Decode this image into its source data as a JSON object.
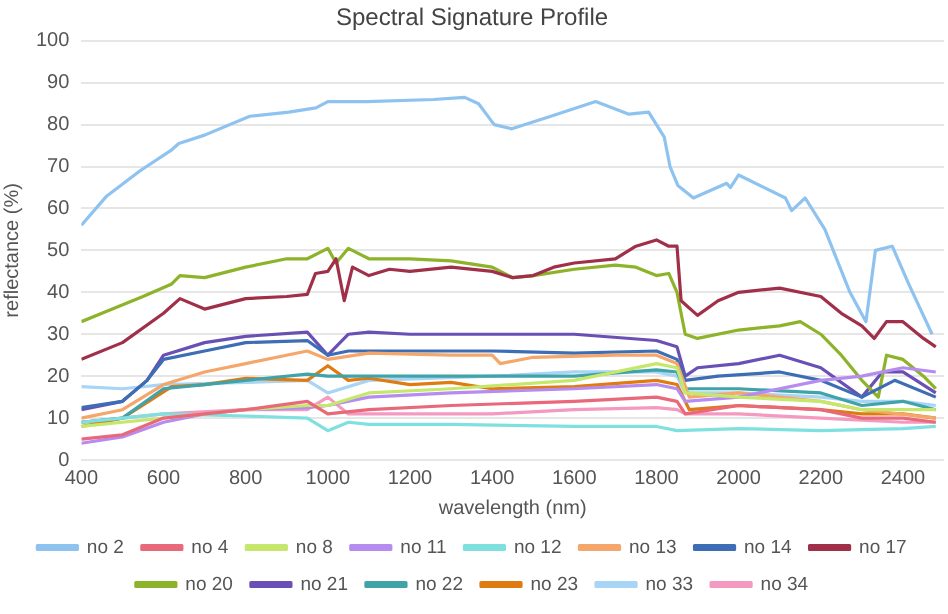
{
  "chart_data": {
    "type": "line",
    "title": "Spectral Signature Profile",
    "xlabel": "wavelength (nm)",
    "ylabel": "reflectance (%)",
    "xlim": [
      400,
      2500
    ],
    "ylim": [
      0,
      100
    ],
    "xticks": [
      400,
      600,
      800,
      1000,
      1200,
      1400,
      1600,
      1800,
      2000,
      2200,
      2400
    ],
    "yticks": [
      0,
      10,
      20,
      30,
      40,
      50,
      60,
      70,
      80,
      90,
      100
    ],
    "grid": "y",
    "legend": "bottom",
    "series": [
      {
        "name": "no 2",
        "color": "#8ec3f0",
        "x": [
          400,
          462,
          543,
          620,
          637,
          700,
          810,
          905,
          971,
          1000,
          1095,
          1257,
          1333,
          1367,
          1405,
          1448,
          1543,
          1652,
          1733,
          1781,
          1819,
          1833,
          1852,
          1890,
          1971,
          1980,
          2000,
          2114,
          2129,
          2162,
          2210,
          2271,
          2310,
          2333,
          2374,
          2414,
          2471
        ],
        "values": [
          56,
          63,
          69,
          74,
          75.5,
          77.5,
          82,
          83,
          84,
          85.5,
          85.5,
          86,
          86.5,
          85,
          80,
          79,
          82,
          85.5,
          82.5,
          83,
          77,
          70,
          65.5,
          62.5,
          66,
          65,
          68,
          62.5,
          59.5,
          62.5,
          55,
          40,
          33,
          50,
          51,
          42,
          30
        ]
      },
      {
        "name": "no 4",
        "color": "#e9687a",
        "x": [
          400,
          500,
          600,
          700,
          800,
          950,
          1000,
          1100,
          1300,
          1600,
          1800,
          1850,
          1870,
          2000,
          2200,
          2300,
          2400,
          2480
        ],
        "values": [
          5,
          6,
          10,
          11,
          12,
          14,
          11,
          12,
          13,
          14,
          15,
          14,
          11,
          13,
          12,
          10,
          10,
          9
        ]
      },
      {
        "name": "no 8",
        "color": "#c5e86c",
        "x": [
          400,
          500,
          600,
          800,
          950,
          1000,
          1100,
          1300,
          1600,
          1800,
          1850,
          1870,
          2000,
          2200,
          2300,
          2480
        ],
        "values": [
          8,
          9,
          10,
          12,
          13,
          13,
          16,
          17,
          19,
          23,
          22,
          16,
          15,
          14,
          12,
          12
        ]
      },
      {
        "name": "no 11",
        "color": "#b68cf0",
        "x": [
          400,
          500,
          600,
          700,
          800,
          950,
          1000,
          1100,
          1300,
          1600,
          1800,
          1850,
          1870,
          2000,
          2200,
          2300,
          2400,
          2480
        ],
        "values": [
          4,
          5.5,
          9,
          11,
          12,
          12.5,
          13,
          15,
          16,
          17,
          18,
          17,
          14,
          15,
          19,
          20,
          22,
          21
        ]
      },
      {
        "name": "no 12",
        "color": "#7fe0e0",
        "x": [
          400,
          500,
          600,
          800,
          950,
          1000,
          1050,
          1100,
          1300,
          1600,
          1800,
          1850,
          2000,
          2200,
          2400,
          2480
        ],
        "values": [
          9,
          10,
          11,
          10.5,
          10,
          7,
          9,
          8.5,
          8.5,
          8,
          8,
          7,
          7.5,
          7,
          7.5,
          8
        ]
      },
      {
        "name": "no 13",
        "color": "#f5a66b",
        "x": [
          400,
          500,
          600,
          700,
          800,
          950,
          1000,
          1100,
          1300,
          1400,
          1420,
          1500,
          1700,
          1800,
          1850,
          1880,
          2000,
          2200,
          2300,
          2480
        ],
        "values": [
          10,
          12,
          18,
          21,
          23,
          26,
          24,
          25.5,
          25,
          25,
          23,
          24.5,
          25,
          25,
          23,
          15,
          16,
          14,
          12,
          10
        ]
      },
      {
        "name": "no 14",
        "color": "#3c6db5",
        "x": [
          400,
          500,
          560,
          600,
          700,
          800,
          950,
          1000,
          1050,
          1100,
          1400,
          1600,
          1800,
          1850,
          1870,
          1950,
          2100,
          2200,
          2300,
          2380,
          2480
        ],
        "values": [
          12.5,
          14,
          19,
          24,
          26,
          28,
          28.5,
          25,
          26,
          26,
          26,
          25.5,
          26,
          24,
          19,
          20,
          21,
          19,
          15,
          19,
          15
        ]
      },
      {
        "name": "no 17",
        "color": "#a0304a",
        "x": [
          400,
          500,
          600,
          640,
          700,
          800,
          900,
          950,
          970,
          1000,
          1020,
          1040,
          1060,
          1100,
          1150,
          1200,
          1300,
          1400,
          1450,
          1500,
          1550,
          1600,
          1700,
          1750,
          1800,
          1830,
          1850,
          1860,
          1900,
          1950,
          2000,
          2100,
          2200,
          2250,
          2300,
          2330,
          2360,
          2400,
          2450,
          2480
        ],
        "values": [
          24,
          28,
          35,
          38.5,
          36,
          38.5,
          39,
          39.5,
          44.5,
          45,
          48,
          38,
          46,
          44,
          45.5,
          45,
          46,
          45,
          43.5,
          44,
          46,
          47,
          48,
          51,
          52.5,
          51,
          51,
          38,
          34.5,
          38,
          40,
          41,
          39,
          35,
          32,
          29,
          33,
          33,
          29,
          27
        ]
      },
      {
        "name": "no 20",
        "color": "#8db32a",
        "x": [
          400,
          450,
          550,
          620,
          640,
          700,
          800,
          900,
          950,
          1000,
          1020,
          1050,
          1100,
          1200,
          1300,
          1400,
          1450,
          1500,
          1600,
          1700,
          1750,
          1800,
          1830,
          1850,
          1870,
          1900,
          2000,
          2100,
          2150,
          2200,
          2250,
          2300,
          2340,
          2360,
          2400,
          2450,
          2480
        ],
        "values": [
          33,
          35,
          39,
          42,
          44,
          43.5,
          46,
          48,
          48,
          50.5,
          47,
          50.5,
          48,
          48,
          47.5,
          46,
          43.5,
          44,
          45.5,
          46.5,
          46,
          44,
          44.5,
          40,
          30,
          29,
          31,
          32,
          33,
          30,
          25,
          19,
          15,
          25,
          24,
          20,
          17
        ]
      },
      {
        "name": "no 21",
        "color": "#6a4fb5",
        "x": [
          400,
          500,
          560,
          600,
          700,
          800,
          950,
          1000,
          1050,
          1100,
          1200,
          1400,
          1600,
          1800,
          1850,
          1870,
          1900,
          2000,
          2100,
          2200,
          2300,
          2350,
          2400,
          2480
        ],
        "values": [
          12,
          14,
          19,
          25,
          28,
          29.5,
          30.5,
          25,
          30,
          30.5,
          30,
          30,
          30,
          28.5,
          27,
          20,
          22,
          23,
          25,
          22,
          15,
          21,
          21,
          16
        ]
      },
      {
        "name": "no 22",
        "color": "#3fa3a8",
        "x": [
          400,
          500,
          600,
          700,
          800,
          950,
          1000,
          1100,
          1300,
          1600,
          1800,
          1850,
          1870,
          2000,
          2200,
          2300,
          2400,
          2480
        ],
        "values": [
          9,
          10,
          17,
          18,
          19,
          20.5,
          20,
          20,
          20,
          20,
          21.5,
          21,
          17,
          17,
          16,
          13,
          14,
          12
        ]
      },
      {
        "name": "no 23",
        "color": "#e07b12",
        "x": [
          400,
          500,
          580,
          620,
          700,
          800,
          950,
          1000,
          1050,
          1100,
          1200,
          1300,
          1400,
          1600,
          1800,
          1850,
          1880,
          2000,
          2200,
          2300,
          2400,
          2480
        ],
        "values": [
          8,
          10,
          15,
          17.5,
          18,
          19.5,
          19,
          22.5,
          19,
          19.5,
          18,
          18.5,
          17,
          17.5,
          19,
          18,
          12,
          13,
          12,
          11,
          11,
          10
        ]
      },
      {
        "name": "no 33",
        "color": "#a8d4f5",
        "x": [
          400,
          500,
          600,
          800,
          950,
          1000,
          1100,
          1400,
          1600,
          1800,
          1850,
          1870,
          2000,
          2200,
          2300,
          2400,
          2480
        ],
        "values": [
          17.5,
          17,
          18,
          18.5,
          19,
          16,
          19,
          20,
          21,
          21,
          20,
          16,
          16,
          15,
          14,
          14,
          13
        ]
      },
      {
        "name": "no 34",
        "color": "#f49ac0",
        "x": [
          400,
          500,
          600,
          800,
          950,
          1000,
          1050,
          1100,
          1400,
          1600,
          1800,
          1850,
          1870,
          2000,
          2200,
          2400,
          2480
        ],
        "values": [
          9,
          10,
          11,
          12,
          12,
          15,
          11,
          11,
          11,
          12,
          12.5,
          12,
          11,
          11,
          10,
          9,
          9
        ]
      }
    ]
  }
}
